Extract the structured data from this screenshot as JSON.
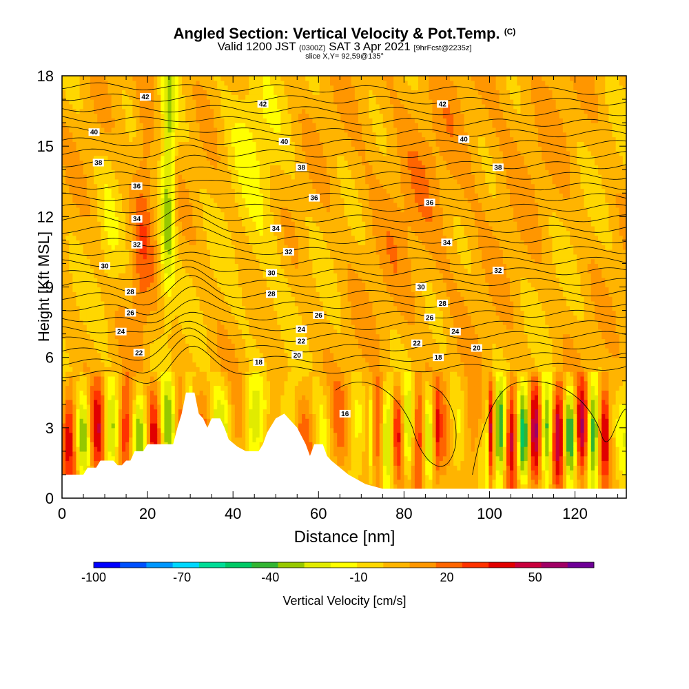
{
  "header": {
    "title": "Angled Section: Vertical Velocity & Pot.Temp.",
    "title_unit": "(C)",
    "valid_main": "Valid 1200 JST",
    "valid_utc": "(0300Z)",
    "valid_date": "SAT 3 Apr 2021",
    "forecast_info": "[9hrFcst@2235z]",
    "slice_info": "slice X,Y= 92,59@135°"
  },
  "chart_data": {
    "type": "heatmap",
    "xlabel": "Distance [nm]",
    "ylabel": "Height [Kft MSL]",
    "xlim": [
      0,
      132
    ],
    "ylim": [
      0,
      18
    ],
    "x_ticks": [
      0,
      20,
      40,
      60,
      80,
      100,
      120
    ],
    "y_ticks": [
      0,
      3,
      6,
      9,
      12,
      15,
      18
    ],
    "colorbar": {
      "label": "Vertical Velocity [cm/s]",
      "tick_labels": [
        "-100",
        "-70",
        "-40",
        "-10",
        "20",
        "50"
      ],
      "tick_values": [
        -100,
        -70,
        -40,
        -10,
        20,
        50
      ],
      "min": -100,
      "max": 70,
      "colors": [
        "#0000ff",
        "#0050ff",
        "#0096ff",
        "#00d7ff",
        "#00dc96",
        "#00c864",
        "#32b432",
        "#96c800",
        "#e1eb00",
        "#ffff00",
        "#ffd700",
        "#ffb400",
        "#ff9600",
        "#ff6400",
        "#ff3200",
        "#e10000",
        "#c8003c",
        "#a00064",
        "#6e0096"
      ]
    },
    "terrain_profile": [
      [
        0,
        1
      ],
      [
        5,
        1
      ],
      [
        6,
        1.3
      ],
      [
        8,
        1.3
      ],
      [
        9,
        1.6
      ],
      [
        12,
        1.6
      ],
      [
        13,
        1.4
      ],
      [
        14,
        1.4
      ],
      [
        15,
        1.6
      ],
      [
        16,
        1.6
      ],
      [
        17,
        2
      ],
      [
        19,
        2
      ],
      [
        20,
        2.3
      ],
      [
        26,
        2.3
      ],
      [
        27,
        3
      ],
      [
        28,
        3.6
      ],
      [
        29,
        4.5
      ],
      [
        31,
        4.5
      ],
      [
        32,
        3.6
      ],
      [
        33,
        3.4
      ],
      [
        34,
        3
      ],
      [
        35,
        3.4
      ],
      [
        37,
        3.4
      ],
      [
        38,
        3
      ],
      [
        39,
        2.5
      ],
      [
        41,
        2.2
      ],
      [
        43,
        2
      ],
      [
        46,
        2
      ],
      [
        47,
        2.3
      ],
      [
        48,
        2.8
      ],
      [
        50,
        3.4
      ],
      [
        52,
        3.6
      ],
      [
        53,
        3.4
      ],
      [
        55,
        3
      ],
      [
        57,
        2.3
      ],
      [
        58,
        1.8
      ],
      [
        59,
        2.3
      ],
      [
        61,
        2.3
      ],
      [
        62,
        1.8
      ],
      [
        63,
        1.6
      ],
      [
        65,
        1.3
      ],
      [
        67,
        1
      ],
      [
        69,
        0.8
      ],
      [
        71,
        0.6
      ],
      [
        73,
        0.5
      ],
      [
        75,
        0.4
      ],
      [
        132,
        0.4
      ]
    ],
    "series": [
      {
        "name": "16",
        "labels": [
          [
            66.2,
            3.6
          ]
        ]
      },
      {
        "name": "18",
        "labels": [
          [
            46,
            5.8
          ],
          [
            88,
            6.0
          ]
        ]
      },
      {
        "name": "20",
        "labels": [
          [
            55,
            6.1
          ],
          [
            97,
            6.4
          ]
        ]
      },
      {
        "name": "22",
        "labels": [
          [
            18,
            6.2
          ],
          [
            56,
            6.7
          ],
          [
            83,
            6.6
          ]
        ]
      },
      {
        "name": "24",
        "labels": [
          [
            13.8,
            7.1
          ],
          [
            56,
            7.2
          ],
          [
            92,
            7.1
          ]
        ]
      },
      {
        "name": "26",
        "labels": [
          [
            16,
            7.9
          ],
          [
            60,
            7.8
          ],
          [
            86,
            7.7
          ]
        ]
      },
      {
        "name": "28",
        "labels": [
          [
            16,
            8.8
          ],
          [
            49,
            8.7
          ],
          [
            89,
            8.3
          ]
        ]
      },
      {
        "name": "30",
        "labels": [
          [
            10,
            9.9
          ],
          [
            49,
            9.6
          ],
          [
            84,
            9.0
          ]
        ]
      },
      {
        "name": "32",
        "labels": [
          [
            17.5,
            10.8
          ],
          [
            53,
            10.5
          ],
          [
            102,
            9.7
          ]
        ]
      },
      {
        "name": "34",
        "labels": [
          [
            17.5,
            11.9
          ],
          [
            50,
            11.5
          ],
          [
            90,
            10.9
          ]
        ]
      },
      {
        "name": "36",
        "labels": [
          [
            17.5,
            13.3
          ],
          [
            59,
            12.8
          ],
          [
            86,
            12.6
          ]
        ]
      },
      {
        "name": "38",
        "labels": [
          [
            8.5,
            14.3
          ],
          [
            56,
            14.1
          ],
          [
            102,
            14.1
          ]
        ]
      },
      {
        "name": "40",
        "labels": [
          [
            7.5,
            15.6
          ],
          [
            52,
            15.2
          ],
          [
            94,
            15.3
          ]
        ]
      },
      {
        "name": "42",
        "labels": [
          [
            19.5,
            17.1
          ],
          [
            47,
            16.8
          ],
          [
            89,
            16.8
          ]
        ]
      }
    ]
  }
}
